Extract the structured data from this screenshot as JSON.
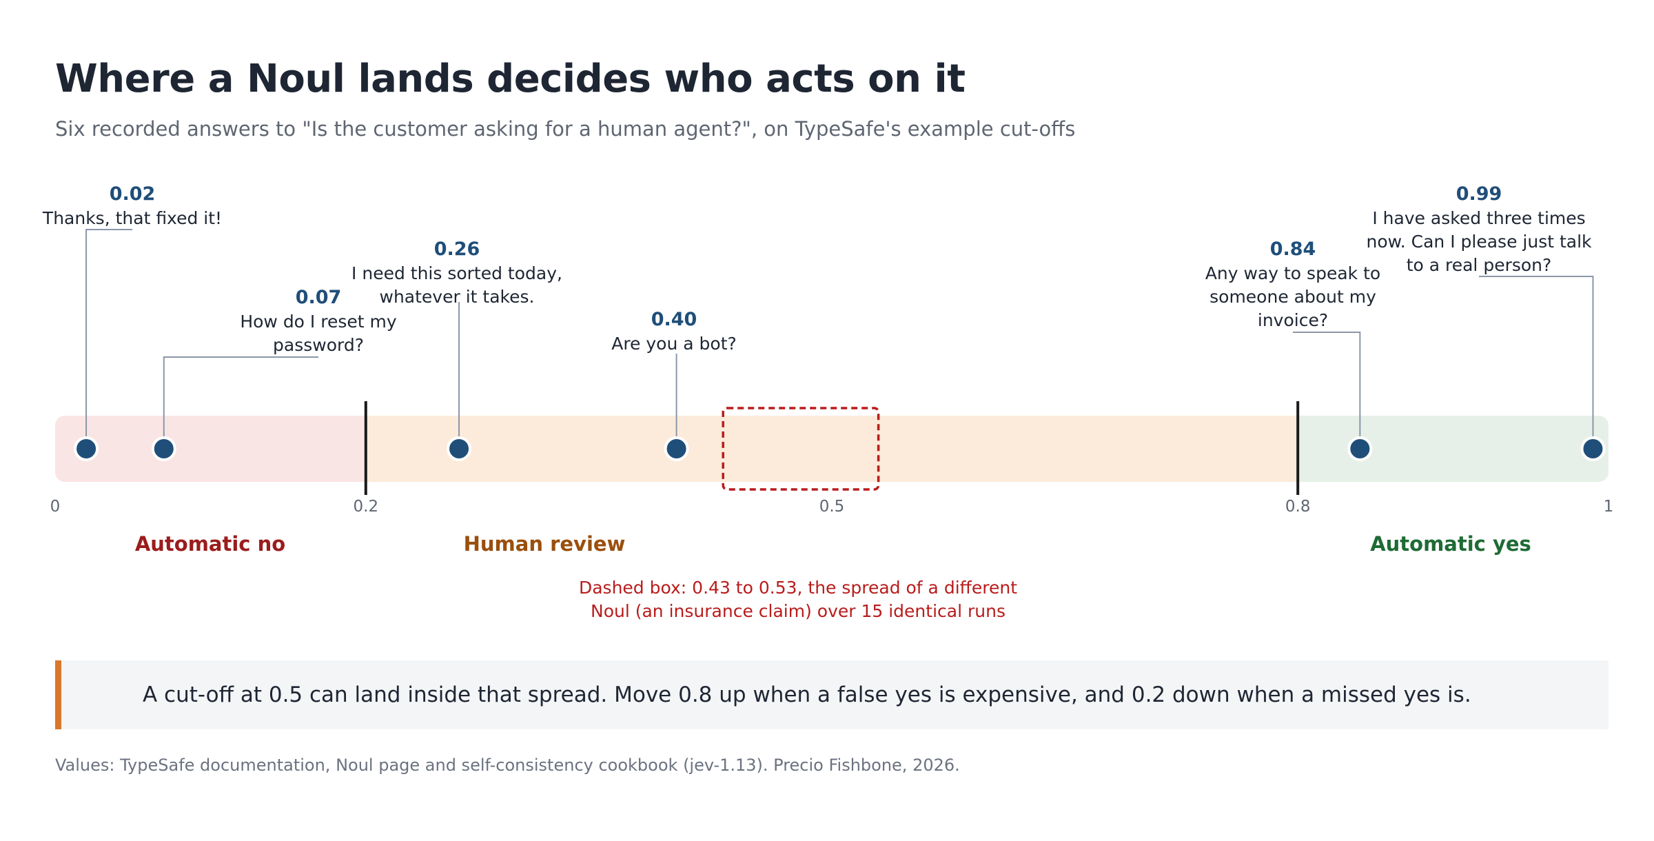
{
  "title": "Where a Noul lands decides who acts on it",
  "subtitle": "Six recorded answers to \"Is the customer asking for a human agent?\", on TypeSafe's example cut-offs",
  "chart_data": {
    "type": "scatter",
    "xlim": [
      0,
      1
    ],
    "x_ticks": [
      {
        "value": 0,
        "label": "0"
      },
      {
        "value": 0.2,
        "label": "0.2"
      },
      {
        "value": 0.5,
        "label": "0.5"
      },
      {
        "value": 0.8,
        "label": "0.8"
      },
      {
        "value": 1,
        "label": "1"
      }
    ],
    "thresholds": [
      0.2,
      0.8
    ],
    "zones": [
      {
        "name": "Automatic no",
        "from": 0,
        "to": 0.2,
        "fill": "#f9e5e4",
        "label_color": "#9b1c1c"
      },
      {
        "name": "Human review",
        "from": 0.2,
        "to": 0.8,
        "fill": "#fcebda",
        "label_color": "#9a4f0c"
      },
      {
        "name": "Automatic yes",
        "from": 0.8,
        "to": 1,
        "fill": "#e6f0e8",
        "label_color": "#1e6b34"
      }
    ],
    "points": [
      {
        "x": 0.02,
        "value_label": "0.02",
        "text": [
          "Thanks, that fixed it!"
        ]
      },
      {
        "x": 0.07,
        "value_label": "0.07",
        "text": [
          "How do I reset my",
          "password?"
        ]
      },
      {
        "x": 0.26,
        "value_label": "0.26",
        "text": [
          "I need this sorted today,",
          "whatever it takes."
        ]
      },
      {
        "x": 0.4,
        "value_label": "0.40",
        "text": [
          "Are you a bot?"
        ]
      },
      {
        "x": 0.84,
        "value_label": "0.84",
        "text": [
          "Any way to speak to",
          "someone about my",
          "invoice?"
        ]
      },
      {
        "x": 0.99,
        "value_label": "0.99",
        "text": [
          "I have asked three times",
          "now. Can I please just talk",
          "to a real person?"
        ]
      }
    ],
    "spread_box": {
      "from": 0.43,
      "to": 0.53,
      "note": [
        "Dashed box: 0.43 to 0.53, the spread of a different",
        "Noul (an insurance claim) over 15 identical runs"
      ]
    },
    "colors": {
      "point": "#1f4e79",
      "value_label": "#1f4e79",
      "threshold": "#1a1a1a",
      "spread": "#b91c1c",
      "leader": "#8a96a8"
    }
  },
  "callout": "A cut-off at 0.5 can land inside that spread. Move 0.8 up when a false yes is expensive, and 0.2 down when a missed yes is.",
  "footer": "Values: TypeSafe documentation, Noul page and self-consistency cookbook (jev-1.13). Precio Fishbone, 2026."
}
